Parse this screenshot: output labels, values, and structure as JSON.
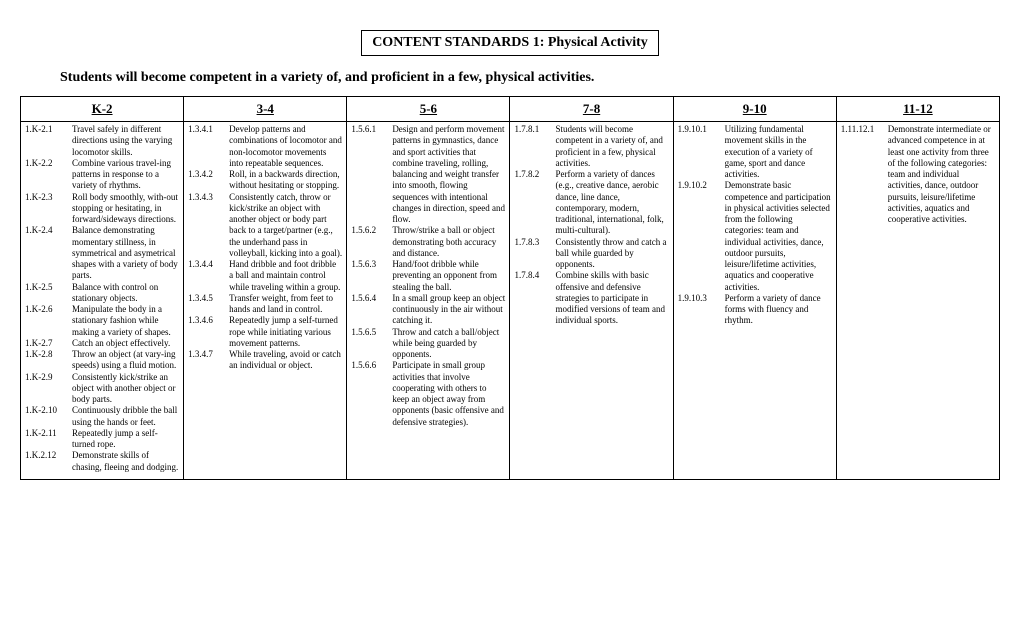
{
  "title": "CONTENT STANDARDS 1: Physical Activity",
  "subtitle": "Students will become competent in a variety of, and proficient in a few, physical activities.",
  "columns": [
    {
      "header": "K-2",
      "codeWidthClass": "codew",
      "items": [
        {
          "code": "1.K-2.1",
          "text": "Travel safely in different directions using the varying locomotor skills."
        },
        {
          "code": "1.K-2.2",
          "text": "Combine various travel-ing patterns in response to a variety of rhythms."
        },
        {
          "code": "1.K-2.3",
          "text": "Roll body smoothly, with-out stopping or hesitating, in forward/sideways directions."
        },
        {
          "code": "1.K-2.4",
          "text": "Balance demonstrating momentary stillness, in symmetrical and asymetrical shapes with a variety of body parts."
        },
        {
          "code": "1.K-2.5",
          "text": "Balance with control on stationary objects."
        },
        {
          "code": "1.K-2.6",
          "text": "Manipulate the body in a stationary fashion while making a variety of shapes."
        },
        {
          "code": "1.K-2.7",
          "text": "Catch an object effectively."
        },
        {
          "code": "1.K-2.8",
          "text": "Throw an object (at vary-ing speeds) using a fluid motion."
        },
        {
          "code": "1.K-2.9",
          "text": "Consistently kick/strike an object with another object or body parts."
        },
        {
          "code": "1.K-2.10",
          "text": "Continuously dribble the ball using the hands or feet."
        },
        {
          "code": "1.K-2.11",
          "text": "Repeatedly jump a self-turned rope."
        },
        {
          "code": "1.K.2.12",
          "text": "Demonstrate skills of chasing, fleeing and dodging."
        }
      ]
    },
    {
      "header": "3-4",
      "codeWidthClass": "code",
      "items": [
        {
          "code": "1.3.4.1",
          "text": "Develop patterns and combinations of locomotor and non-locomotor movements into repeatable sequences."
        },
        {
          "code": "1.3.4.2",
          "text": "Roll, in a backwards direction, without hesitating or stopping."
        },
        {
          "code": "1.3.4.3",
          "text": "Consistently catch, throw or kick/strike an object with another object or body part back to a target/partner (e.g., the underhand pass in volleyball, kicking into a goal)."
        },
        {
          "code": "1.3.4.4",
          "text": "Hand dribble and foot dribble a ball and maintain control while traveling within a group."
        },
        {
          "code": "1.3.4.5",
          "text": "Transfer weight, from feet to hands and land in control."
        },
        {
          "code": "1.3.4.6",
          "text": "Repeatedly jump a self-turned rope while initiating various movement patterns."
        },
        {
          "code": "1.3.4.7",
          "text": "While traveling, avoid or catch an individual or object."
        }
      ]
    },
    {
      "header": "5-6",
      "codeWidthClass": "code",
      "items": [
        {
          "code": "1.5.6.1",
          "text": "Design and perform movement patterns in gymnastics, dance and sport activities that combine traveling, rolling, balancing and weight transfer into smooth, flowing sequences with intentional changes in direction, speed and flow."
        },
        {
          "code": "1.5.6.2",
          "text": "Throw/strike a ball or object demonstrating both accuracy and distance."
        },
        {
          "code": "1.5.6.3",
          "text": "Hand/foot dribble while preventing an opponent from stealing the ball."
        },
        {
          "code": "1.5.6.4",
          "text": "In a small group keep an object continuously in the air without catching it."
        },
        {
          "code": "1.5.6.5",
          "text": "Throw and catch a ball/object while being guarded by opponents."
        },
        {
          "code": "1.5.6.6",
          "text": "Participate in small group activities that involve cooperating with others to keep an object away from opponents (basic offensive and defensive strategies)."
        }
      ]
    },
    {
      "header": "7-8",
      "codeWidthClass": "code",
      "items": [
        {
          "code": "1.7.8.1",
          "text": "Students will become competent in a variety of, and proficient in a few, physical activities."
        },
        {
          "code": "1.7.8.2",
          "text": "Perform a variety of dances (e.g., creative dance, aerobic dance, line dance, contemporary, modern, traditional, international, folk, multi-cultural)."
        },
        {
          "code": "1.7.8.3",
          "text": "Consistently throw and catch a ball while guarded by opponents."
        },
        {
          "code": "1.7.8.4",
          "text": "Combine skills with basic offensive and defensive strategies to participate in modified versions of team and individual sports."
        }
      ]
    },
    {
      "header": "9-10",
      "codeWidthClass": "codew",
      "items": [
        {
          "code": "1.9.10.1",
          "text": "Utilizing fundamental movement skills in the execution of a variety of game, sport and dance activities."
        },
        {
          "code": "1.9.10.2",
          "text": "Demonstrate basic competence and participation in physical activities selected from the following categories: team and individual activities, dance, outdoor pursuits, leisure/lifetime activities, aquatics and cooperative activities."
        },
        {
          "code": "1.9.10.3",
          "text": "Perform a variety of dance forms with fluency and rhythm."
        }
      ]
    },
    {
      "header": "11-12",
      "codeWidthClass": "codew",
      "items": [
        {
          "code": "1.11.12.1",
          "text": "Demonstrate intermediate or advanced competence in at least one activity from three of the following categories: team and individual activities, dance, outdoor pursuits, leisure/lifetime activities, aquatics and cooperative activities."
        }
      ]
    }
  ]
}
